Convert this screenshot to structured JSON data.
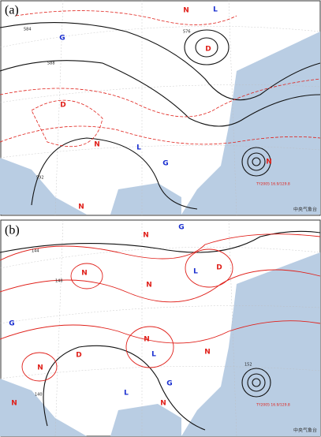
{
  "panels": [
    {
      "label": "(a)",
      "markers": [
        "N",
        "G",
        "L",
        "D",
        "N",
        "D",
        "L",
        "G",
        "N",
        "N"
      ],
      "contour_labels": [
        "584",
        "588",
        "592",
        "576"
      ],
      "typhoon": "TY2005 16.9/129.8",
      "credit": "中央气象台"
    },
    {
      "label": "(b)",
      "markers": [
        "G",
        "N",
        "L",
        "D",
        "N",
        "N",
        "G",
        "N",
        "L",
        "N",
        "D",
        "N",
        "G",
        "L",
        "N",
        "N"
      ],
      "contour_labels": [
        "144",
        "148",
        "140",
        "152"
      ],
      "typhoon": "TY2005 16.9/129.8",
      "credit": "中央气象台"
    }
  ]
}
